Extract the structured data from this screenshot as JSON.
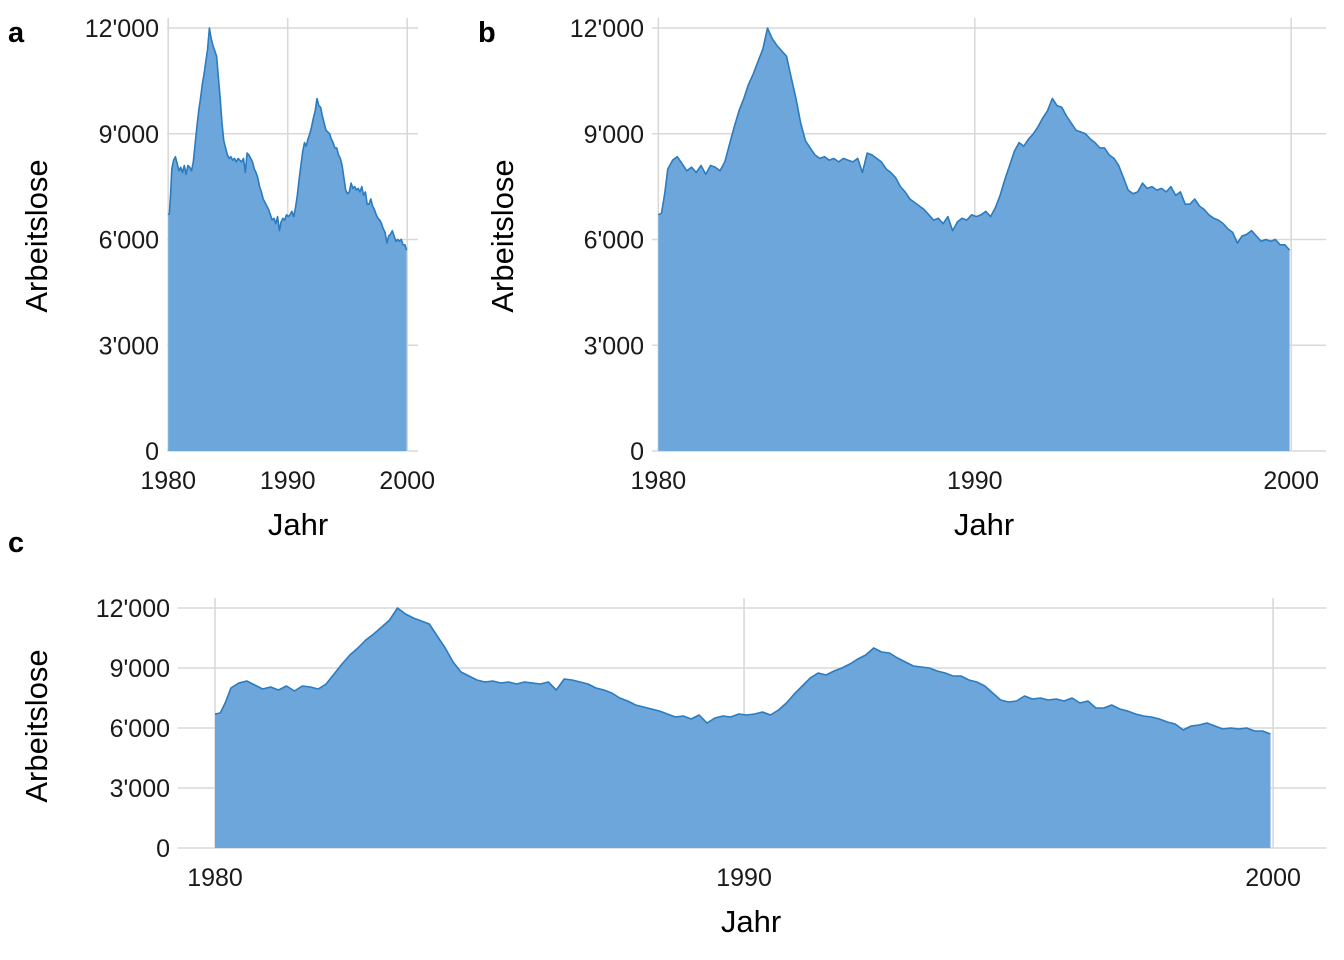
{
  "panels": [
    {
      "letter": "a",
      "xlabel": "Jahr",
      "ylabel": "Arbeitslose"
    },
    {
      "letter": "b",
      "xlabel": "Jahr",
      "ylabel": "Arbeitslose"
    },
    {
      "letter": "c",
      "xlabel": "Jahr",
      "ylabel": "Arbeitslose"
    }
  ],
  "colors": {
    "area_fill": "#6ca6db",
    "area_line": "#2b7bbf",
    "grid": "#d9d9d9"
  },
  "chart_data": [
    {
      "type": "area",
      "panel": "a",
      "xlabel": "Jahr",
      "ylabel": "Arbeitslose",
      "xlim": [
        1979.9,
        2000.9
      ],
      "ylim": [
        0,
        12000
      ],
      "x_ticks": [
        1980,
        1990,
        2000
      ],
      "x_tick_labels": [
        "1980",
        "1990",
        "2000"
      ],
      "y_ticks": [
        0,
        3000,
        6000,
        9000,
        12000
      ],
      "y_tick_labels": [
        "0",
        "3'000",
        "6'000",
        "9'000",
        "12'000"
      ],
      "grid": true,
      "series_ref": "shared_series"
    },
    {
      "type": "area",
      "panel": "b",
      "xlabel": "Jahr",
      "ylabel": "Arbeitslose",
      "xlim": [
        1979.8,
        2001.1
      ],
      "ylim": [
        0,
        12000
      ],
      "x_ticks": [
        1980,
        1990,
        2000
      ],
      "x_tick_labels": [
        "1980",
        "1990",
        "2000"
      ],
      "y_ticks": [
        0,
        3000,
        6000,
        9000,
        12000
      ],
      "y_tick_labels": [
        "0",
        "3'000",
        "6'000",
        "9'000",
        "12'000"
      ],
      "grid": true,
      "series_ref": "shared_series"
    },
    {
      "type": "area",
      "panel": "c",
      "xlabel": "Jahr",
      "ylabel": "Arbeitslose",
      "xlim": [
        1979.3,
        2001.0
      ],
      "ylim": [
        0,
        12000
      ],
      "x_ticks": [
        1980,
        1990,
        2000
      ],
      "x_tick_labels": [
        "1980",
        "1990",
        "2000"
      ],
      "y_ticks": [
        0,
        3000,
        6000,
        9000,
        12000
      ],
      "y_tick_labels": [
        "0",
        "3'000",
        "6'000",
        "9'000",
        "12'000"
      ],
      "grid": true,
      "series_ref": "shared_series"
    }
  ],
  "shared_series": {
    "x": [
      1980.0,
      1980.1,
      1980.2,
      1980.3,
      1980.45,
      1980.6,
      1980.75,
      1980.9,
      1981.05,
      1981.2,
      1981.35,
      1981.5,
      1981.65,
      1981.8,
      1981.95,
      1982.1,
      1982.25,
      1982.4,
      1982.55,
      1982.7,
      1982.85,
      1983.0,
      1983.15,
      1983.3,
      1983.45,
      1983.6,
      1983.75,
      1983.9,
      1984.05,
      1984.2,
      1984.35,
      1984.5,
      1984.65,
      1984.8,
      1984.95,
      1985.1,
      1985.25,
      1985.4,
      1985.55,
      1985.7,
      1985.85,
      1986.0,
      1986.15,
      1986.3,
      1986.45,
      1986.6,
      1986.75,
      1986.9,
      1987.05,
      1987.2,
      1987.35,
      1987.5,
      1987.65,
      1987.8,
      1987.95,
      1988.1,
      1988.25,
      1988.4,
      1988.55,
      1988.7,
      1988.85,
      1989.0,
      1989.15,
      1989.3,
      1989.45,
      1989.6,
      1989.75,
      1989.9,
      1990.05,
      1990.2,
      1990.35,
      1990.5,
      1990.65,
      1990.8,
      1990.95,
      1991.1,
      1991.25,
      1991.4,
      1991.55,
      1991.7,
      1991.85,
      1992.0,
      1992.15,
      1992.3,
      1992.45,
      1992.6,
      1992.75,
      1992.9,
      1993.05,
      1993.2,
      1993.35,
      1993.5,
      1993.65,
      1993.8,
      1993.95,
      1994.1,
      1994.25,
      1994.4,
      1994.55,
      1994.7,
      1994.85,
      1995.0,
      1995.15,
      1995.3,
      1995.45,
      1995.6,
      1995.75,
      1995.9,
      1996.05,
      1996.2,
      1996.35,
      1996.5,
      1996.65,
      1996.8,
      1996.95,
      1997.1,
      1997.25,
      1997.4,
      1997.55,
      1997.7,
      1997.85,
      1998.0,
      1998.15,
      1998.3,
      1998.45,
      1998.6,
      1998.75,
      1998.9,
      1999.05,
      1999.2,
      1999.35,
      1999.5,
      1999.65,
      1999.8,
      1999.95
    ],
    "y": [
      6700,
      6750,
      7300,
      8000,
      8250,
      8350,
      8150,
      7950,
      8050,
      7900,
      8100,
      7850,
      8100,
      8050,
      7950,
      8200,
      8700,
      9200,
      9650,
      10000,
      10400,
      10700,
      11050,
      11400,
      12000,
      11700,
      11500,
      11350,
      11200,
      10600,
      10000,
      9300,
      8800,
      8600,
      8400,
      8300,
      8350,
      8250,
      8300,
      8200,
      8300,
      8250,
      8200,
      8300,
      7900,
      8450,
      8400,
      8300,
      8200,
      8000,
      7900,
      7750,
      7500,
      7350,
      7150,
      7050,
      6950,
      6850,
      6700,
      6550,
      6600,
      6450,
      6650,
      6250,
      6500,
      6600,
      6550,
      6700,
      6650,
      6700,
      6800,
      6650,
      6900,
      7250,
      7700,
      8100,
      8500,
      8750,
      8650,
      8850,
      9000,
      9200,
      9450,
      9650,
      10000,
      9800,
      9750,
      9500,
      9300,
      9100,
      9050,
      9000,
      8850,
      8750,
      8600,
      8600,
      8400,
      8300,
      8100,
      7750,
      7400,
      7300,
      7350,
      7600,
      7450,
      7500,
      7400,
      7450,
      7350,
      7500,
      7250,
      7350,
      7000,
      7000,
      7150,
      6950,
      6850,
      6700,
      6600,
      6550,
      6450,
      6300,
      6200,
      5900,
      6100,
      6150,
      6250,
      6100,
      5950,
      6000,
      5950,
      6000,
      5850,
      5850,
      5700
    ]
  }
}
